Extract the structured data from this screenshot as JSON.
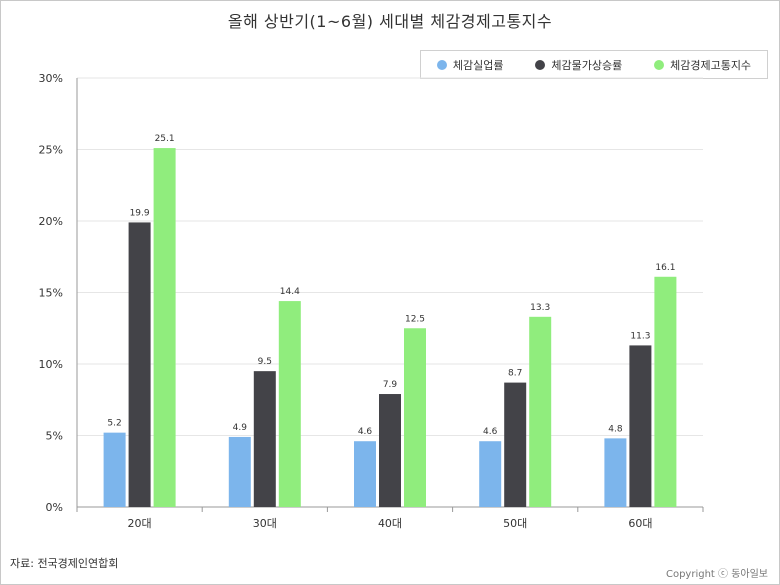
{
  "chart_data": {
    "type": "bar",
    "title": "올해 상반기(1~6월) 세대별 체감경제고통지수",
    "categories": [
      "20대",
      "30대",
      "40대",
      "50대",
      "60대"
    ],
    "series": [
      {
        "name": "체감실업률",
        "color": "#7cb5ec",
        "values": [
          5.2,
          4.9,
          4.6,
          4.6,
          4.8
        ]
      },
      {
        "name": "체감물가상승률",
        "color": "#434348",
        "values": [
          19.9,
          9.5,
          7.9,
          8.7,
          11.3
        ]
      },
      {
        "name": "체감경제고통지수",
        "color": "#90ed7d",
        "values": [
          25.1,
          14.4,
          12.5,
          13.3,
          16.1
        ]
      }
    ],
    "ylim": [
      0,
      30
    ],
    "yticks": [
      0,
      5,
      10,
      15,
      20,
      25,
      30
    ],
    "ytick_labels": [
      "0%",
      "5%",
      "10%",
      "15%",
      "20%",
      "25%",
      "30%"
    ],
    "xlabel": "",
    "ylabel": "",
    "legend": "top-right",
    "grid": true
  },
  "footer": {
    "source": "자료: 전국경제인연합회",
    "copyright": "Copyright ⓒ 동아일보"
  }
}
